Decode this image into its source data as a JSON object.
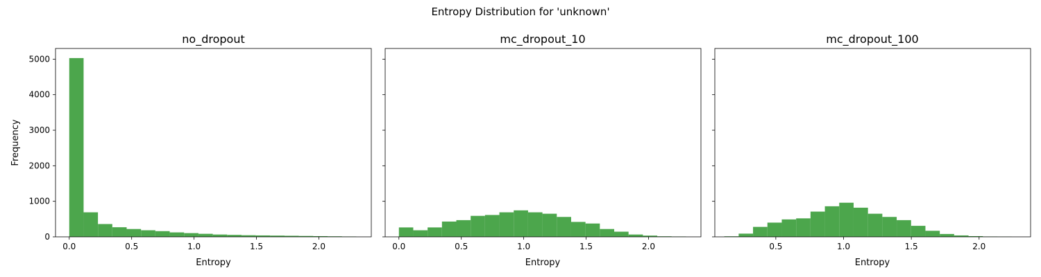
{
  "figure": {
    "suptitle": "Entropy Distribution for 'unknown'",
    "bar_color": "#4ca64c"
  },
  "chart_data": [
    {
      "type": "bar",
      "title": "no_dropout",
      "xlabel": "Entropy",
      "ylabel": "Frequency",
      "xlim": [
        -0.11,
        2.42
      ],
      "ylim": [
        0,
        5300
      ],
      "xticks": [
        0.0,
        0.5,
        1.0,
        1.5,
        2.0
      ],
      "xtick_labels": [
        "0.0",
        "0.5",
        "1.0",
        "1.5",
        "2.0"
      ],
      "yticks": [
        0,
        1000,
        2000,
        3000,
        4000,
        5000
      ],
      "ytick_labels": [
        "0",
        "1000",
        "2000",
        "3000",
        "4000",
        "5000"
      ],
      "bin_start": 0.0,
      "bin_width": 0.115,
      "values": [
        5030,
        690,
        360,
        270,
        220,
        185,
        160,
        125,
        105,
        85,
        65,
        55,
        45,
        40,
        35,
        30,
        25,
        20,
        15,
        10
      ]
    },
    {
      "type": "bar",
      "title": "mc_dropout_10",
      "xlabel": "Entropy",
      "ylabel": "",
      "xlim": [
        -0.11,
        2.42
      ],
      "ylim": [
        0,
        5300
      ],
      "xticks": [
        0.0,
        0.5,
        1.0,
        1.5,
        2.0
      ],
      "xtick_labels": [
        "0.0",
        "0.5",
        "1.0",
        "1.5",
        "2.0"
      ],
      "yticks": [
        0,
        1000,
        2000,
        3000,
        4000,
        5000
      ],
      "ytick_labels": [],
      "bin_start": 0.0,
      "bin_width": 0.115,
      "values": [
        265,
        185,
        265,
        430,
        470,
        590,
        615,
        690,
        745,
        690,
        650,
        560,
        420,
        375,
        220,
        145,
        65,
        35,
        15,
        10
      ]
    },
    {
      "type": "bar",
      "title": "mc_dropout_100",
      "xlabel": "Entropy",
      "ylabel": "",
      "xlim": [
        0.05,
        2.38
      ],
      "ylim": [
        0,
        5300
      ],
      "xticks": [
        0.5,
        1.0,
        1.5,
        2.0
      ],
      "xtick_labels": [
        "0.5",
        "1.0",
        "1.5",
        "2.0"
      ],
      "yticks": [
        0,
        1000,
        2000,
        3000,
        4000,
        5000
      ],
      "ytick_labels": [],
      "bin_start": 0.12,
      "bin_width": 0.106,
      "values": [
        15,
        90,
        280,
        400,
        490,
        520,
        710,
        860,
        960,
        820,
        650,
        560,
        470,
        310,
        170,
        80,
        40,
        20,
        10,
        5
      ]
    }
  ]
}
